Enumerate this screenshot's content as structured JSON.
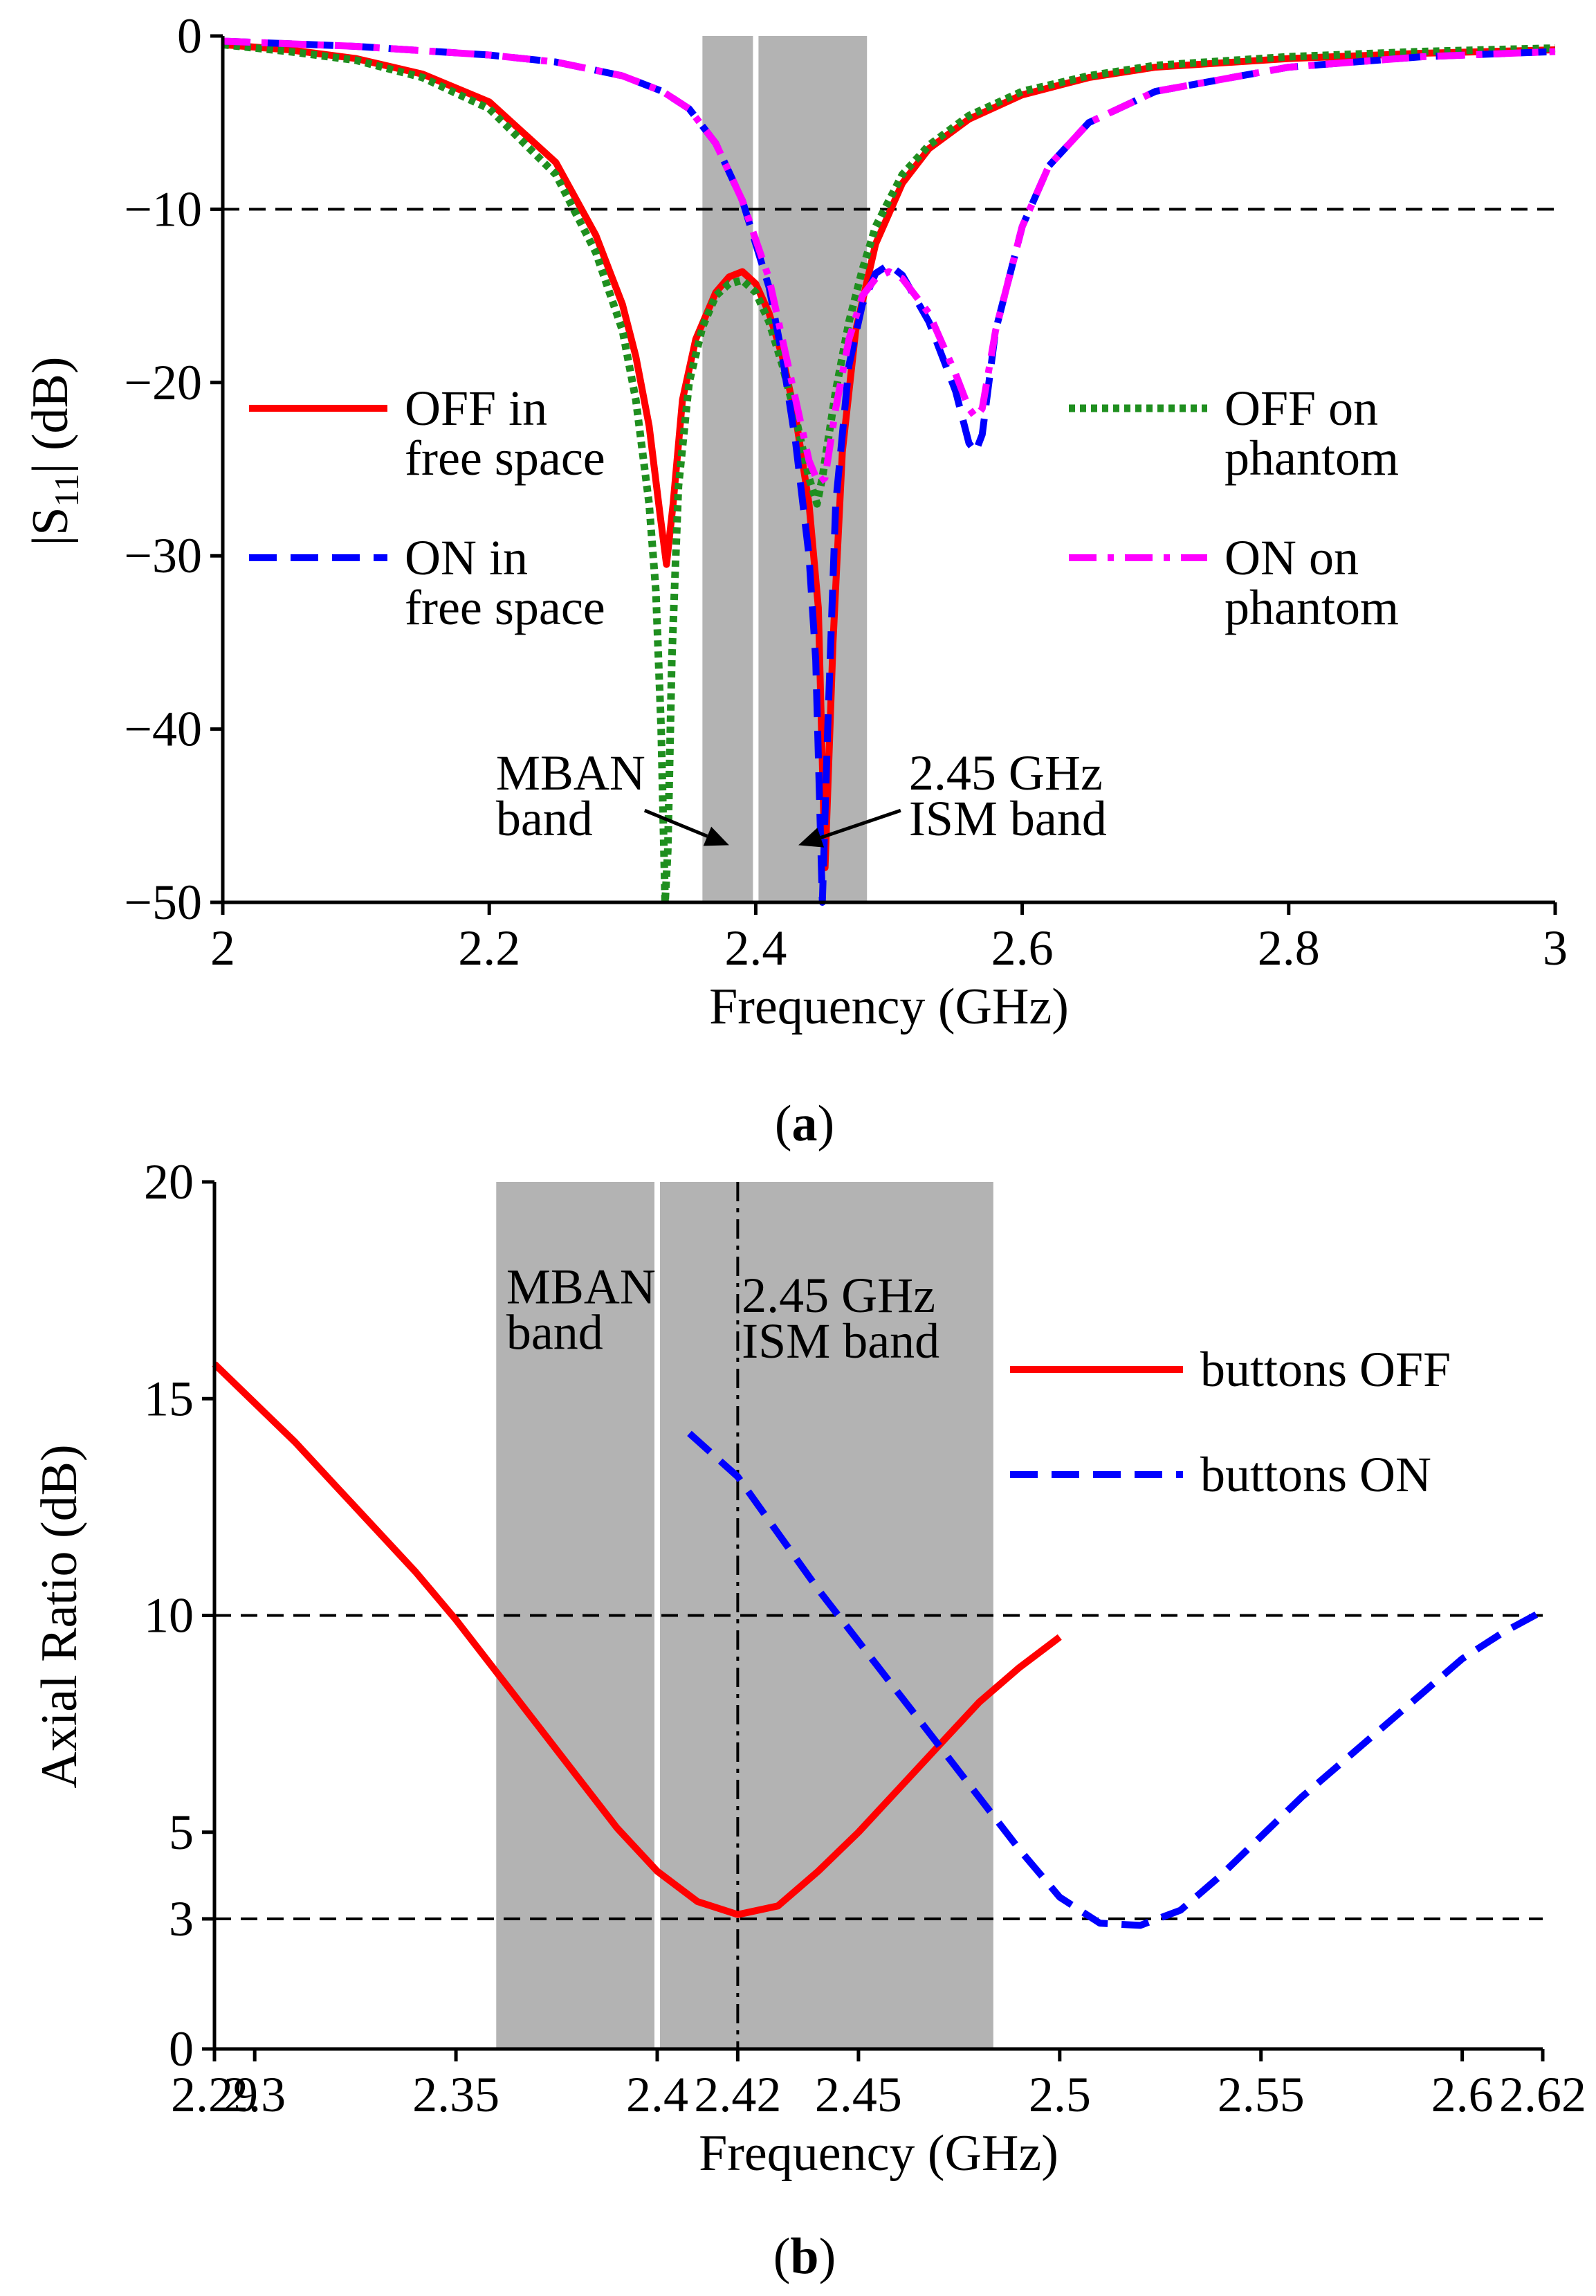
{
  "colors": {
    "off_free": "#ff0000",
    "off_phantom": "#1f8f1f",
    "on_free": "#0000ff",
    "on_phantom": "#ff00ff",
    "band": "#b3b3b3",
    "axis": "#000000"
  },
  "chart_data": [
    {
      "panel_label": "a",
      "type": "line",
      "xlabel": "Frequency (GHz)",
      "ylabel": "|S11| (dB)",
      "ylabel_main": "|S",
      "ylabel_sub": "11",
      "ylabel_rest": "| (dB)",
      "xlim": [
        2,
        3
      ],
      "ylim": [
        -50,
        0
      ],
      "xticks": [
        {
          "v": 2,
          "t": "2"
        },
        {
          "v": 2.2,
          "t": "2.2"
        },
        {
          "v": 2.4,
          "t": "2.4"
        },
        {
          "v": 2.6,
          "t": "2.6"
        },
        {
          "v": 2.8,
          "t": "2.8"
        },
        {
          "v": 3,
          "t": "3"
        }
      ],
      "yticks": [
        {
          "v": 0,
          "t": "0"
        },
        {
          "v": -10,
          "t": "−10"
        },
        {
          "v": -20,
          "t": "−20"
        },
        {
          "v": -30,
          "t": "−30"
        },
        {
          "v": -40,
          "t": "−40"
        },
        {
          "v": -50,
          "t": "−50"
        }
      ],
      "ref_lines": [
        {
          "orient": "h",
          "v": -10
        }
      ],
      "bands": [
        {
          "x0": 2.36,
          "x1": 2.4
        },
        {
          "x0": 2.4,
          "x1": 2.4835
        }
      ],
      "band_annotations": [
        {
          "lines": [
            "MBAN",
            "band"
          ],
          "tx": 2.205,
          "ty": -43.5,
          "ax": 2.38,
          "ay": -46.7,
          "align": "start"
        },
        {
          "lines": [
            "2.45 GHz",
            "ISM band"
          ],
          "tx": 2.515,
          "ty": -43.5,
          "ax": 2.432,
          "ay": -46.7,
          "align": "start"
        }
      ],
      "series": [
        {
          "name": "OFF in free space",
          "legend": [
            "OFF in",
            "free space"
          ],
          "color_key": "off_free",
          "dash": "solid",
          "x": [
            2,
            2.05,
            2.1,
            2.15,
            2.2,
            2.25,
            2.28,
            2.3,
            2.31,
            2.32,
            2.328,
            2.333,
            2.338,
            2.345,
            2.355,
            2.37,
            2.38,
            2.39,
            2.4,
            2.41,
            2.42,
            2.43,
            2.44,
            2.447,
            2.452,
            2.458,
            2.465,
            2.475,
            2.49,
            2.51,
            2.53,
            2.56,
            2.6,
            2.65,
            2.7,
            2.8,
            2.9,
            3
          ],
          "y": [
            -0.5,
            -0.8,
            -1.3,
            -2.2,
            -3.8,
            -7.3,
            -11.5,
            -15.5,
            -18.5,
            -22.5,
            -27.5,
            -30.5,
            -27,
            -21,
            -17.5,
            -14.8,
            -13.9,
            -13.6,
            -14.3,
            -16,
            -18.5,
            -22,
            -27,
            -33,
            -48,
            -35,
            -24,
            -17,
            -12,
            -8.5,
            -6.5,
            -4.8,
            -3.4,
            -2.4,
            -1.8,
            -1.3,
            -1.0,
            -0.8
          ]
        },
        {
          "name": "OFF on phantom",
          "legend": [
            "OFF on",
            "phantom"
          ],
          "color_key": "off_phantom",
          "dash": "dotted",
          "x": [
            2,
            2.05,
            2.1,
            2.15,
            2.2,
            2.25,
            2.28,
            2.3,
            2.31,
            2.32,
            2.325,
            2.329,
            2.332,
            2.334,
            2.337,
            2.342,
            2.35,
            2.36,
            2.37,
            2.38,
            2.39,
            2.4,
            2.41,
            2.42,
            2.43,
            2.44,
            2.446,
            2.45,
            2.455,
            2.46,
            2.47,
            2.48,
            2.49,
            2.51,
            2.53,
            2.56,
            2.6,
            2.65,
            2.7,
            2.8,
            2.9,
            3
          ],
          "y": [
            -0.5,
            -0.9,
            -1.4,
            -2.4,
            -4.2,
            -8.0,
            -12.5,
            -17,
            -21,
            -27,
            -32,
            -40,
            -50,
            -47,
            -36,
            -26,
            -20,
            -16.8,
            -15,
            -14.3,
            -14.1,
            -14.8,
            -16.5,
            -19,
            -22,
            -25.5,
            -27,
            -25.5,
            -23,
            -20.5,
            -16.5,
            -13.5,
            -11,
            -8,
            -6.3,
            -4.6,
            -3.2,
            -2.3,
            -1.7,
            -1.2,
            -0.9,
            -0.7
          ]
        },
        {
          "name": "ON in free space",
          "legend": [
            "ON in",
            "free space"
          ],
          "color_key": "on_free",
          "dash": "dashed",
          "x": [
            2,
            2.1,
            2.2,
            2.25,
            2.3,
            2.33,
            2.35,
            2.37,
            2.39,
            2.41,
            2.42,
            2.43,
            2.44,
            2.445,
            2.45,
            2.454,
            2.46,
            2.47,
            2.48,
            2.49,
            2.5,
            2.51,
            2.53,
            2.55,
            2.56,
            2.565,
            2.57,
            2.58,
            2.6,
            2.62,
            2.65,
            2.7,
            2.8,
            2.9,
            3
          ],
          "y": [
            -0.3,
            -0.6,
            -1.1,
            -1.5,
            -2.3,
            -3.2,
            -4.2,
            -6.2,
            -9.5,
            -14.5,
            -18.5,
            -23.5,
            -30,
            -36,
            -50,
            -40,
            -27,
            -19,
            -15.5,
            -13.7,
            -13.2,
            -13.8,
            -16.5,
            -20.5,
            -23.5,
            -24,
            -23,
            -17,
            -11,
            -7.5,
            -5,
            -3.2,
            -1.8,
            -1.2,
            -0.9
          ]
        },
        {
          "name": "ON on phantom",
          "legend": [
            "ON on",
            "phantom"
          ],
          "color_key": "on_phantom",
          "dash": "dashdot",
          "x": [
            2,
            2.1,
            2.2,
            2.25,
            2.3,
            2.33,
            2.35,
            2.37,
            2.39,
            2.41,
            2.42,
            2.43,
            2.44,
            2.447,
            2.452,
            2.46,
            2.47,
            2.48,
            2.49,
            2.5,
            2.51,
            2.53,
            2.55,
            2.56,
            2.565,
            2.57,
            2.58,
            2.6,
            2.62,
            2.65,
            2.7,
            2.8,
            2.9,
            3
          ],
          "y": [
            -0.3,
            -0.6,
            -1.1,
            -1.5,
            -2.3,
            -3.2,
            -4.2,
            -6.2,
            -9.5,
            -14,
            -17.5,
            -21,
            -24.5,
            -25.8,
            -25.5,
            -21.5,
            -17.5,
            -15,
            -14,
            -13.6,
            -14,
            -16,
            -19.5,
            -21.5,
            -22,
            -21.5,
            -17,
            -11,
            -7.5,
            -5,
            -3.2,
            -1.8,
            -1.2,
            -0.9
          ]
        }
      ]
    },
    {
      "panel_label": "b",
      "type": "line",
      "xlabel": "Frequency (GHz)",
      "ylabel": "Axial Ratio (dB)",
      "xlim": [
        2.29,
        2.62
      ],
      "ylim": [
        0,
        20
      ],
      "xticks": [
        {
          "v": 2.29,
          "t": "2.29"
        },
        {
          "v": 2.3,
          "t": "2.3"
        },
        {
          "v": 2.35,
          "t": "2.35"
        },
        {
          "v": 2.4,
          "t": "2.4"
        },
        {
          "v": 2.42,
          "t": "2.42"
        },
        {
          "v": 2.45,
          "t": "2.45"
        },
        {
          "v": 2.5,
          "t": "2.5"
        },
        {
          "v": 2.55,
          "t": "2.55"
        },
        {
          "v": 2.6,
          "t": "2.6"
        },
        {
          "v": 2.62,
          "t": "2.62"
        }
      ],
      "yticks": [
        {
          "v": 0,
          "t": "0"
        },
        {
          "v": 3,
          "t": "3"
        },
        {
          "v": 5,
          "t": "5"
        },
        {
          "v": 10,
          "t": "10"
        },
        {
          "v": 15,
          "t": "15"
        },
        {
          "v": 20,
          "t": "20"
        }
      ],
      "ref_lines": [
        {
          "orient": "h",
          "v": 10
        },
        {
          "orient": "h",
          "v": 3
        },
        {
          "orient": "v",
          "v": 2.42
        }
      ],
      "bands": [
        {
          "x0": 2.36,
          "x1": 2.4
        },
        {
          "x0": 2.4,
          "x1": 2.4835
        }
      ],
      "band_annotations": [
        {
          "lines": [
            "MBAN",
            "band"
          ],
          "tx": 2.3625,
          "ty": 17.2,
          "align": "start"
        },
        {
          "lines": [
            "2.45 GHz",
            "ISM band"
          ],
          "tx": 2.421,
          "ty": 17.0,
          "align": "start"
        }
      ],
      "series": [
        {
          "name": "buttons OFF",
          "legend": [
            "buttons OFF"
          ],
          "color_key": "off_free",
          "dash": "solid",
          "x": [
            2.29,
            2.3,
            2.31,
            2.32,
            2.33,
            2.34,
            2.35,
            2.36,
            2.37,
            2.38,
            2.39,
            2.4,
            2.41,
            2.42,
            2.43,
            2.44,
            2.45,
            2.46,
            2.47,
            2.48,
            2.49,
            2.5
          ],
          "y": [
            15.8,
            14.9,
            14.0,
            13.0,
            12.0,
            11.0,
            9.9,
            8.7,
            7.5,
            6.3,
            5.1,
            4.1,
            3.4,
            3.1,
            3.3,
            4.1,
            5.0,
            6.0,
            7.0,
            8.0,
            8.8,
            9.5
          ]
        },
        {
          "name": "buttons ON",
          "legend": [
            "buttons ON"
          ],
          "color_key": "on_free",
          "dash": "dashed",
          "x": [
            2.408,
            2.42,
            2.43,
            2.44,
            2.45,
            2.46,
            2.47,
            2.48,
            2.49,
            2.5,
            2.51,
            2.52,
            2.53,
            2.54,
            2.55,
            2.56,
            2.57,
            2.58,
            2.59,
            2.6,
            2.61,
            2.62
          ],
          "y": [
            14.2,
            13.2,
            11.9,
            10.6,
            9.4,
            8.2,
            7.0,
            5.8,
            4.6,
            3.5,
            2.9,
            2.85,
            3.2,
            4.0,
            4.9,
            5.8,
            6.6,
            7.4,
            8.2,
            9.0,
            9.6,
            10.1
          ]
        }
      ]
    }
  ]
}
